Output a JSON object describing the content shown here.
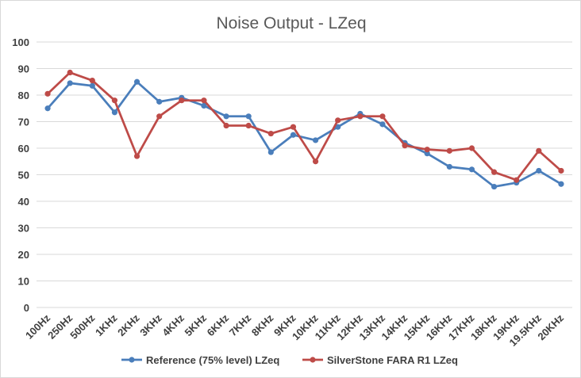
{
  "chart_data": {
    "type": "line",
    "title": "Noise Output  - LZeq",
    "xlabel": "",
    "ylabel": "",
    "ylim": [
      0,
      100
    ],
    "yticks": [
      "0",
      "10",
      "20",
      "30",
      "40",
      "50",
      "60",
      "70",
      "80",
      "90",
      "100"
    ],
    "grid": true,
    "legend_position": "bottom",
    "categories": [
      "100Hz",
      "250Hz",
      "500Hz",
      "1KHz",
      "2KHz",
      "3KHz",
      "4KHz",
      "5KHz",
      "6KHz",
      "7KHz",
      "8KHz",
      "9KHz",
      "10KHz",
      "11KHz",
      "12KHz",
      "13KHz",
      "14KHz",
      "15KHz",
      "16KHz",
      "17KHz",
      "18KHz",
      "19KHz",
      "19.5KHz",
      "20KHz"
    ],
    "series": [
      {
        "name": "Reference (75% level) LZeq",
        "color": "#4a7ebb",
        "values": [
          75,
          84.5,
          83.5,
          73.5,
          85,
          77.5,
          79,
          76,
          72,
          72,
          58.5,
          65,
          63,
          68,
          73,
          69,
          62,
          58,
          53,
          52,
          45.5,
          47,
          51.5,
          46.5
        ]
      },
      {
        "name": "SilverStone FARA R1 LZeq",
        "color": "#be4b48",
        "values": [
          80.5,
          88.5,
          85.5,
          78,
          57,
          72,
          78,
          78,
          68.5,
          68.5,
          65.5,
          68,
          55,
          70.5,
          72,
          72,
          61,
          59.5,
          59,
          60,
          51,
          48,
          59,
          51.5
        ]
      }
    ]
  }
}
